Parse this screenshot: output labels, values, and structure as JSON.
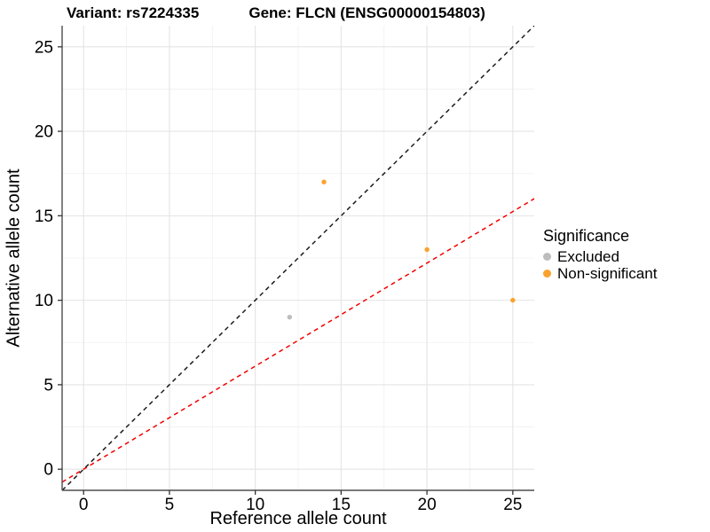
{
  "chart_data": {
    "type": "scatter",
    "title_left": "Variant: rs7224335",
    "title_right": "Gene: FLCN (ENSG00000154803)",
    "xlabel": "Reference allele count",
    "ylabel": "Alternative allele count",
    "xlim": [
      -1.25,
      26.25
    ],
    "ylim": [
      -1.25,
      26.25
    ],
    "x_ticks": [
      0,
      5,
      10,
      15,
      20,
      25
    ],
    "y_ticks": [
      0,
      5,
      10,
      15,
      20,
      25
    ],
    "minor_gridlines": [
      2.5,
      7.5,
      12.5,
      17.5,
      22.5
    ],
    "grid": "on",
    "series": [
      {
        "name": "Excluded",
        "color": "#BDBDBD",
        "points": [
          {
            "x": 12,
            "y": 9
          }
        ]
      },
      {
        "name": "Non-significant",
        "color": "#FAA22E",
        "points": [
          {
            "x": 14,
            "y": 17
          },
          {
            "x": 20,
            "y": 13
          },
          {
            "x": 25,
            "y": 10
          }
        ]
      }
    ],
    "reference_lines": [
      {
        "name": "identity",
        "slope": 1,
        "intercept": 0,
        "color": "#1C1C1C",
        "style": "dashed"
      },
      {
        "name": "expected-ratio",
        "slope": 0.61,
        "intercept": 0,
        "color": "#F20000",
        "style": "dashed"
      }
    ],
    "legend": {
      "title": "Significance",
      "position": "right",
      "items": [
        {
          "label": "Excluded",
          "color": "#BDBDBD"
        },
        {
          "label": "Non-significant",
          "color": "#FAA22E"
        }
      ]
    },
    "colors": {
      "major_grid": "#E4E4E4",
      "minor_grid": "#F0F0F0",
      "axis_line": "#4D4D4D",
      "tick": "#333333",
      "text": "#000000"
    }
  }
}
